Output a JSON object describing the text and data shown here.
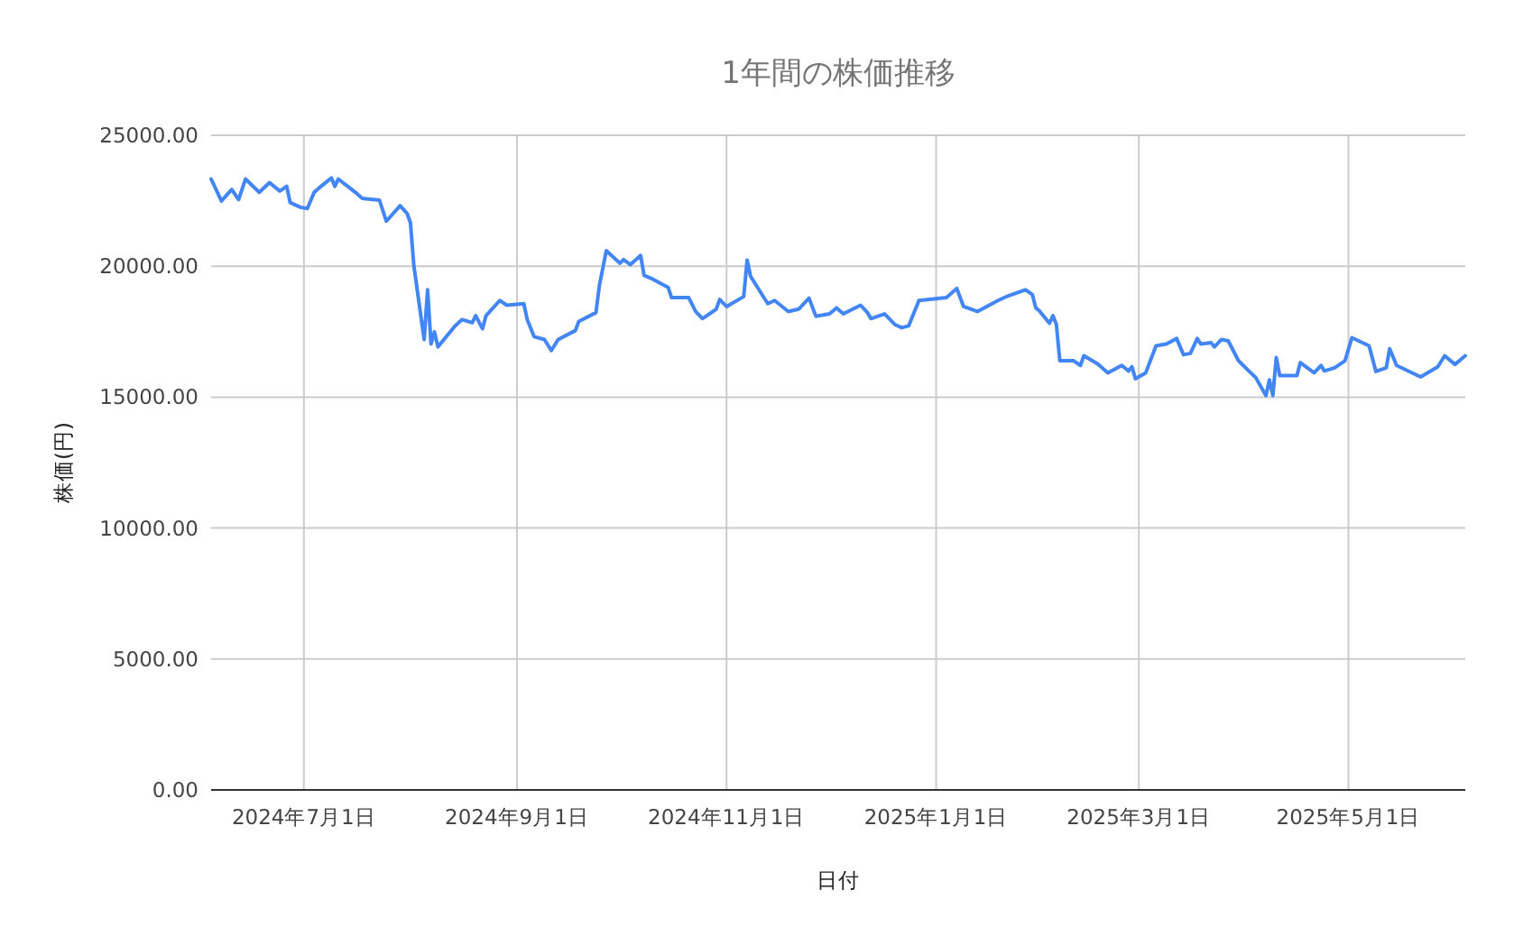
{
  "chart_data": {
    "type": "line",
    "title": "1年間の株価推移",
    "xlabel": "日付",
    "ylabel": "株価(円)",
    "xlim": [
      "2024-06-04",
      "2025-06-04"
    ],
    "ylim": [
      0,
      25000
    ],
    "xticks": [
      {
        "value": "2024-07-01",
        "label": "2024年7月1日"
      },
      {
        "value": "2024-09-01",
        "label": "2024年9月1日"
      },
      {
        "value": "2024-11-01",
        "label": "2024年11月1日"
      },
      {
        "value": "2025-01-01",
        "label": "2025年1月1日"
      },
      {
        "value": "2025-03-01",
        "label": "2025年3月1日"
      },
      {
        "value": "2025-05-01",
        "label": "2025年5月1日"
      }
    ],
    "yticks": [
      {
        "value": 0,
        "label": "0.00"
      },
      {
        "value": 5000,
        "label": "5000.00"
      },
      {
        "value": 10000,
        "label": "10000.00"
      },
      {
        "value": 15000,
        "label": "15000.00"
      },
      {
        "value": 20000,
        "label": "20000.00"
      },
      {
        "value": 25000,
        "label": "25000.00"
      }
    ],
    "grid": true,
    "marker": "none",
    "line_style": "solid",
    "x": [
      "2024-06-04",
      "2024-06-07",
      "2024-06-10",
      "2024-06-12",
      "2024-06-14",
      "2024-06-18",
      "2024-06-21",
      "2024-06-24",
      "2024-06-26",
      "2024-06-27",
      "2024-06-30",
      "2024-07-02",
      "2024-07-04",
      "2024-07-06",
      "2024-07-09",
      "2024-07-10",
      "2024-07-11",
      "2024-07-16",
      "2024-07-18",
      "2024-07-23",
      "2024-07-25",
      "2024-07-29",
      "2024-07-31",
      "2024-08-01",
      "2024-08-02",
      "2024-08-05",
      "2024-08-06",
      "2024-08-07",
      "2024-08-08",
      "2024-08-09",
      "2024-08-14",
      "2024-08-16",
      "2024-08-19",
      "2024-08-20",
      "2024-08-22",
      "2024-08-23",
      "2024-08-27",
      "2024-08-29",
      "2024-09-03",
      "2024-09-04",
      "2024-09-06",
      "2024-09-09",
      "2024-09-11",
      "2024-09-13",
      "2024-09-18",
      "2024-09-19",
      "2024-09-24",
      "2024-09-25",
      "2024-09-27",
      "2024-10-01",
      "2024-10-02",
      "2024-10-04",
      "2024-10-07",
      "2024-10-08",
      "2024-10-10",
      "2024-10-15",
      "2024-10-16",
      "2024-10-21",
      "2024-10-23",
      "2024-10-25",
      "2024-10-29",
      "2024-10-30",
      "2024-11-01",
      "2024-11-06",
      "2024-11-07",
      "2024-11-08",
      "2024-11-13",
      "2024-11-15",
      "2024-11-19",
      "2024-11-22",
      "2024-11-25",
      "2024-11-27",
      "2024-12-01",
      "2024-12-03",
      "2024-12-05",
      "2024-12-10",
      "2024-12-12",
      "2024-12-13",
      "2024-12-17",
      "2024-12-20",
      "2024-12-22",
      "2024-12-24",
      "2024-12-27",
      "2025-01-04",
      "2025-01-07",
      "2025-01-09",
      "2025-01-13",
      "2025-01-19",
      "2025-01-22",
      "2025-01-27",
      "2025-01-29",
      "2025-01-30",
      "2025-01-31",
      "2025-02-03",
      "2025-02-04",
      "2025-02-05",
      "2025-02-06",
      "2025-02-10",
      "2025-02-12",
      "2025-02-13",
      "2025-02-17",
      "2025-02-20",
      "2025-02-24",
      "2025-02-26",
      "2025-02-27",
      "2025-02-28",
      "2025-03-03",
      "2025-03-06",
      "2025-03-09",
      "2025-03-12",
      "2025-03-14",
      "2025-03-16",
      "2025-03-18",
      "2025-03-19",
      "2025-03-22",
      "2025-03-23",
      "2025-03-25",
      "2025-03-27",
      "2025-03-30",
      "2025-04-02",
      "2025-04-04",
      "2025-04-07",
      "2025-04-08",
      "2025-04-09",
      "2025-04-10",
      "2025-04-11",
      "2025-04-16",
      "2025-04-17",
      "2025-04-21",
      "2025-04-23",
      "2025-04-24",
      "2025-04-27",
      "2025-04-30",
      "2025-05-02",
      "2025-05-07",
      "2025-05-09",
      "2025-05-12",
      "2025-05-13",
      "2025-05-15",
      "2025-05-22",
      "2025-05-27",
      "2025-05-29",
      "2025-06-01",
      "2025-06-04"
    ],
    "series": [
      {
        "color": "#4285f4",
        "values": [
          23330,
          22490,
          22930,
          22540,
          23330,
          22820,
          23190,
          22870,
          23050,
          22430,
          22250,
          22200,
          22820,
          23050,
          23370,
          23050,
          23330,
          22820,
          22590,
          22520,
          21720,
          22310,
          22020,
          21670,
          20020,
          17200,
          19100,
          17030,
          17490,
          16920,
          17720,
          17960,
          17840,
          18110,
          17610,
          18110,
          18690,
          18510,
          18570,
          17960,
          17310,
          17200,
          16780,
          17200,
          17540,
          17890,
          18230,
          19260,
          20590,
          20110,
          20250,
          20060,
          20410,
          19650,
          19540,
          19190,
          18800,
          18800,
          18270,
          18000,
          18360,
          18730,
          18460,
          18840,
          20230,
          19610,
          18570,
          18690,
          18270,
          18360,
          18780,
          18090,
          18180,
          18410,
          18180,
          18510,
          18230,
          18000,
          18180,
          17770,
          17650,
          17720,
          18690,
          18800,
          19150,
          18460,
          18270,
          18690,
          18870,
          19100,
          18920,
          18410,
          18300,
          17820,
          18110,
          17770,
          16390,
          16390,
          16210,
          16580,
          16270,
          15930,
          16210,
          16000,
          16160,
          15700,
          15930,
          16960,
          17030,
          17240,
          16620,
          16670,
          17240,
          17030,
          17080,
          16920,
          17200,
          17150,
          16390,
          16000,
          15750,
          15060,
          15660,
          15060,
          16510,
          15820,
          15820,
          16320,
          15930,
          16210,
          16000,
          16120,
          16390,
          17270,
          16960,
          15980,
          16120,
          16850,
          16210,
          15770,
          16160,
          16580,
          16250,
          16580
        ]
      }
    ]
  }
}
